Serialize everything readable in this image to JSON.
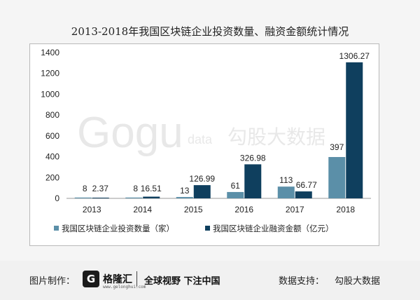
{
  "title": "2013-2018年我国区块链企业投资数量、融资金额统计情况",
  "chart_data": {
    "type": "bar",
    "categories": [
      "2013",
      "2014",
      "2015",
      "2016",
      "2017",
      "2018"
    ],
    "series": [
      {
        "name": "我国区块链企业投资数量（家）",
        "values": [
          8,
          8,
          13,
          61,
          113,
          397
        ],
        "labels": [
          "8",
          "8",
          "13",
          "61",
          "113",
          "397"
        ],
        "color": "#5b8fa8"
      },
      {
        "name": "我国区块链企业融资金额（亿元）",
        "values": [
          2.37,
          16.51,
          126.99,
          326.98,
          66.77,
          1306.27
        ],
        "labels": [
          "2.37",
          "16.51",
          "126.99",
          "326.98",
          "66.77",
          "1306.27"
        ],
        "color": "#0f3f5e"
      }
    ],
    "yticks": [
      "0",
      "200",
      "400",
      "600",
      "800",
      "1000",
      "1200",
      "1400"
    ],
    "ylim": [
      0,
      1400
    ],
    "legend": "bottom",
    "grid": false
  },
  "watermark": {
    "logo_text": "Gogu",
    "sub_text": "data",
    "cn_text": "勾股大数据"
  },
  "footer": {
    "made_by_label": "图片制作：",
    "brand_icon_letter": "G",
    "brand_name": "格隆汇",
    "brand_url": "www.gelonghui.com",
    "slogan": "全球视野 下注中国",
    "support_label": "数据支持：",
    "support_value": "勾股大数据"
  }
}
